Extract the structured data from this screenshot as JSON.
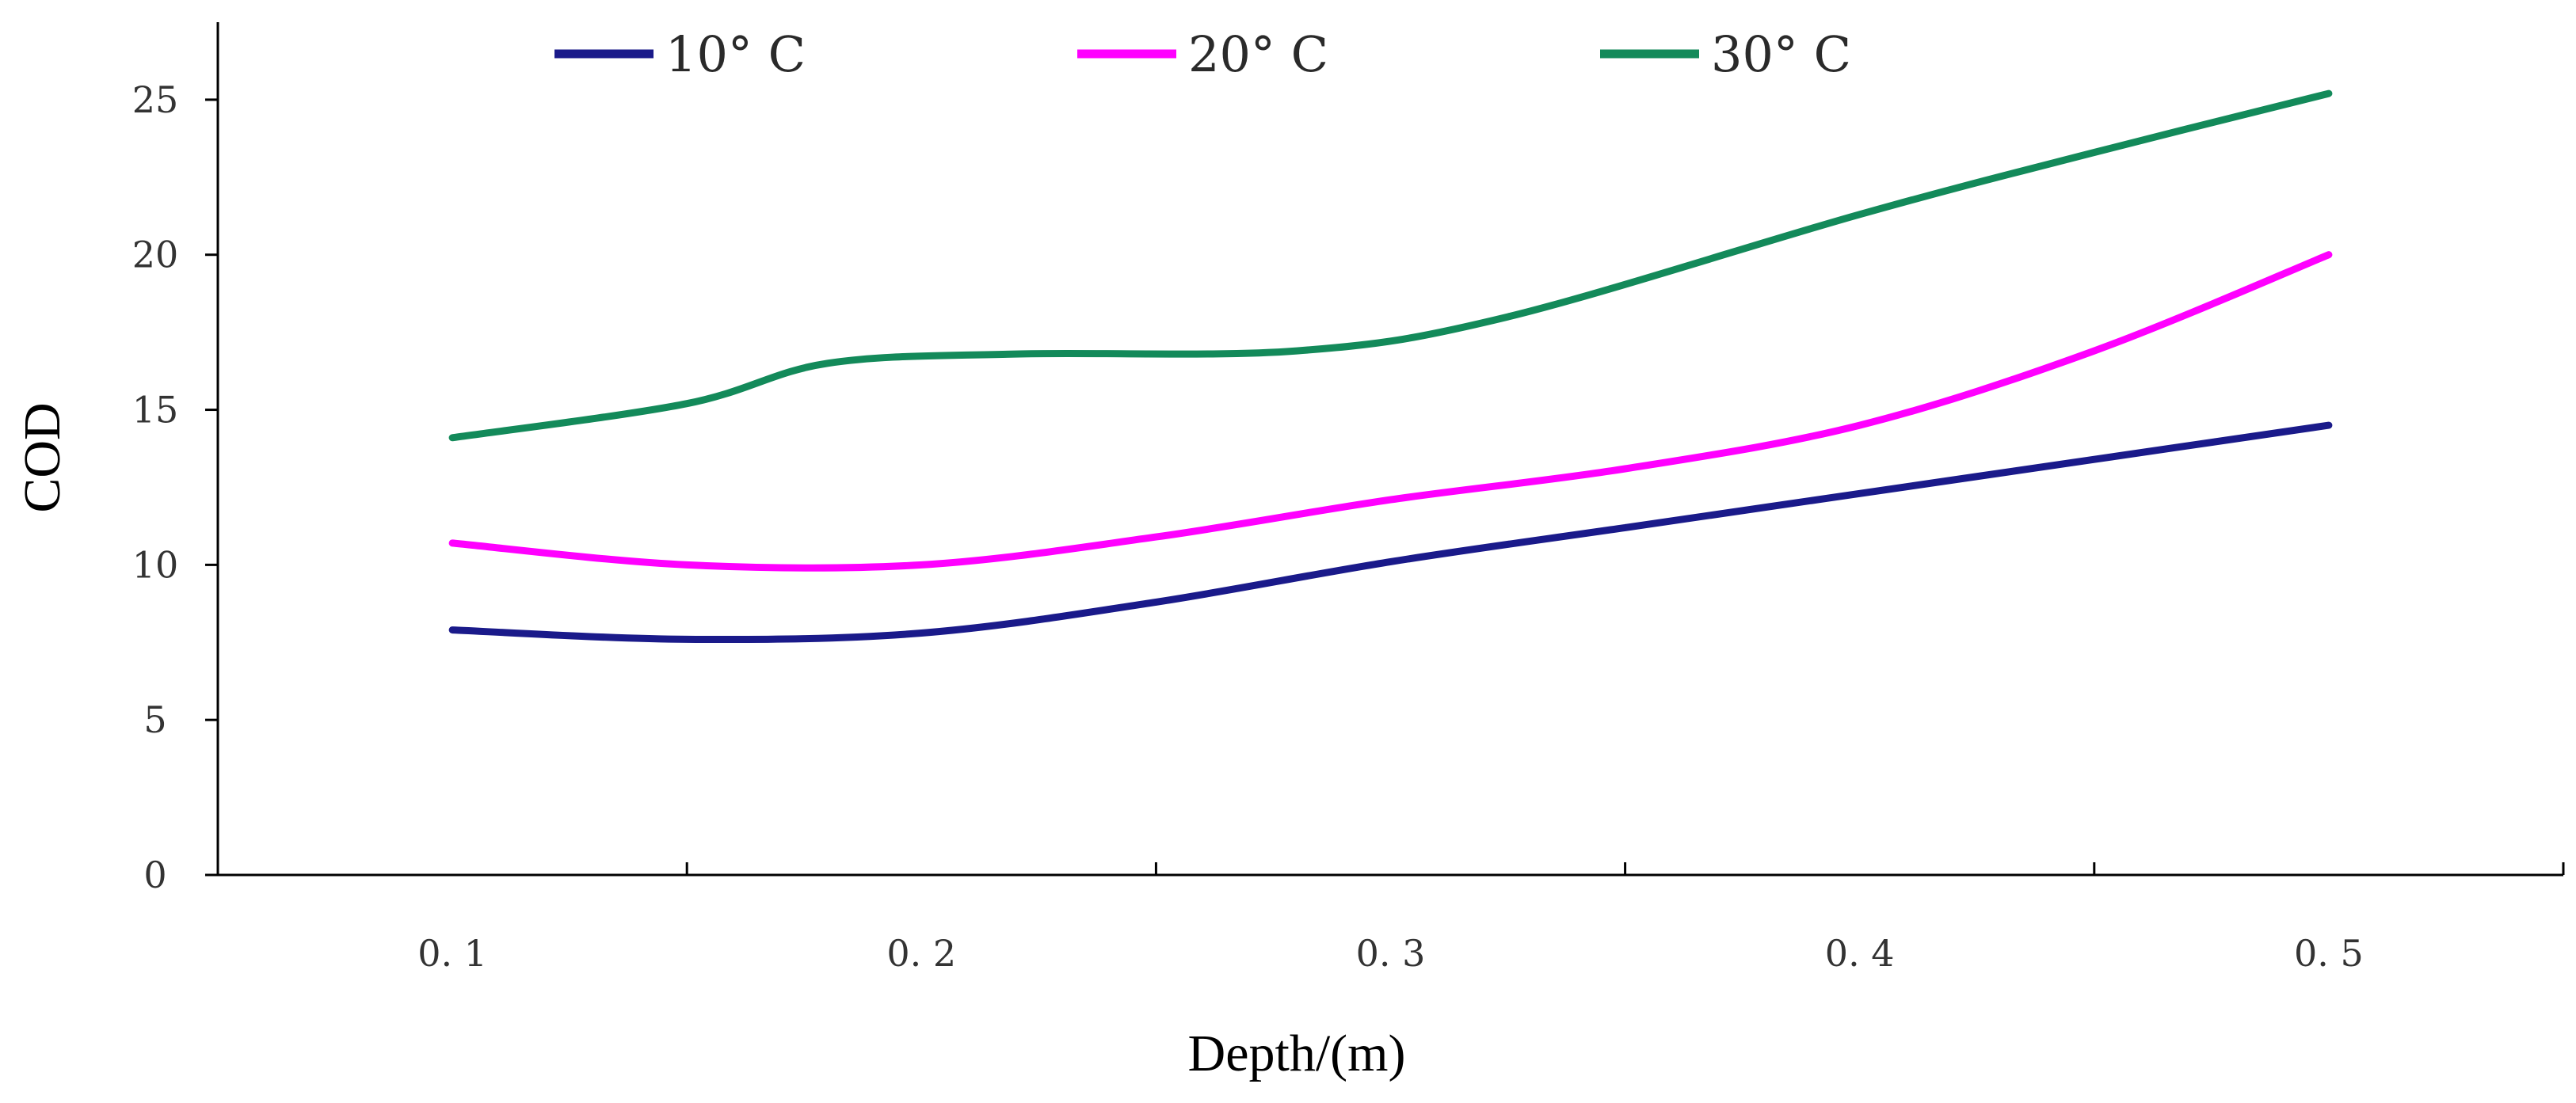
{
  "chart_data": {
    "type": "line",
    "title": "",
    "xlabel": "Depth/(m)",
    "ylabel": "COD",
    "categories": [
      "0.1",
      "0.2",
      "0.3",
      "0.4",
      "0.5"
    ],
    "x": [
      0.1,
      0.2,
      0.3,
      0.4,
      0.5
    ],
    "x_tick_labels": [
      "0. 1",
      "0. 2",
      "0. 3",
      "0. 4",
      "0. 5"
    ],
    "y_tick_labels": [
      "0",
      "5",
      "10",
      "15",
      "20",
      "25"
    ],
    "y_ticks": [
      0,
      5,
      10,
      15,
      20,
      25
    ],
    "ylim": [
      0,
      27.5
    ],
    "grid": false,
    "legend_position": "top",
    "series": [
      {
        "name": "10° C",
        "color": "#1a1a8a",
        "values": [
          7.9,
          7.6,
          7.8,
          8.8,
          10.1,
          11.2,
          12.3,
          13.4,
          14.5
        ],
        "x": [
          0.1,
          0.15,
          0.2,
          0.25,
          0.3,
          0.35,
          0.4,
          0.45,
          0.5
        ]
      },
      {
        "name": "20° C",
        "color": "#ff00ff",
        "values": [
          10.7,
          10.0,
          10.0,
          10.9,
          12.1,
          13.1,
          14.5,
          16.9,
          20.0
        ],
        "x": [
          0.1,
          0.15,
          0.2,
          0.25,
          0.3,
          0.35,
          0.4,
          0.45,
          0.5
        ]
      },
      {
        "name": "30° C",
        "color": "#138a5a",
        "values": [
          14.1,
          15.2,
          16.5,
          16.8,
          16.9,
          18.0,
          21.3,
          23.3,
          25.2
        ],
        "x": [
          0.1,
          0.15,
          0.18,
          0.22,
          0.28,
          0.325,
          0.4,
          0.45,
          0.5
        ]
      }
    ]
  }
}
